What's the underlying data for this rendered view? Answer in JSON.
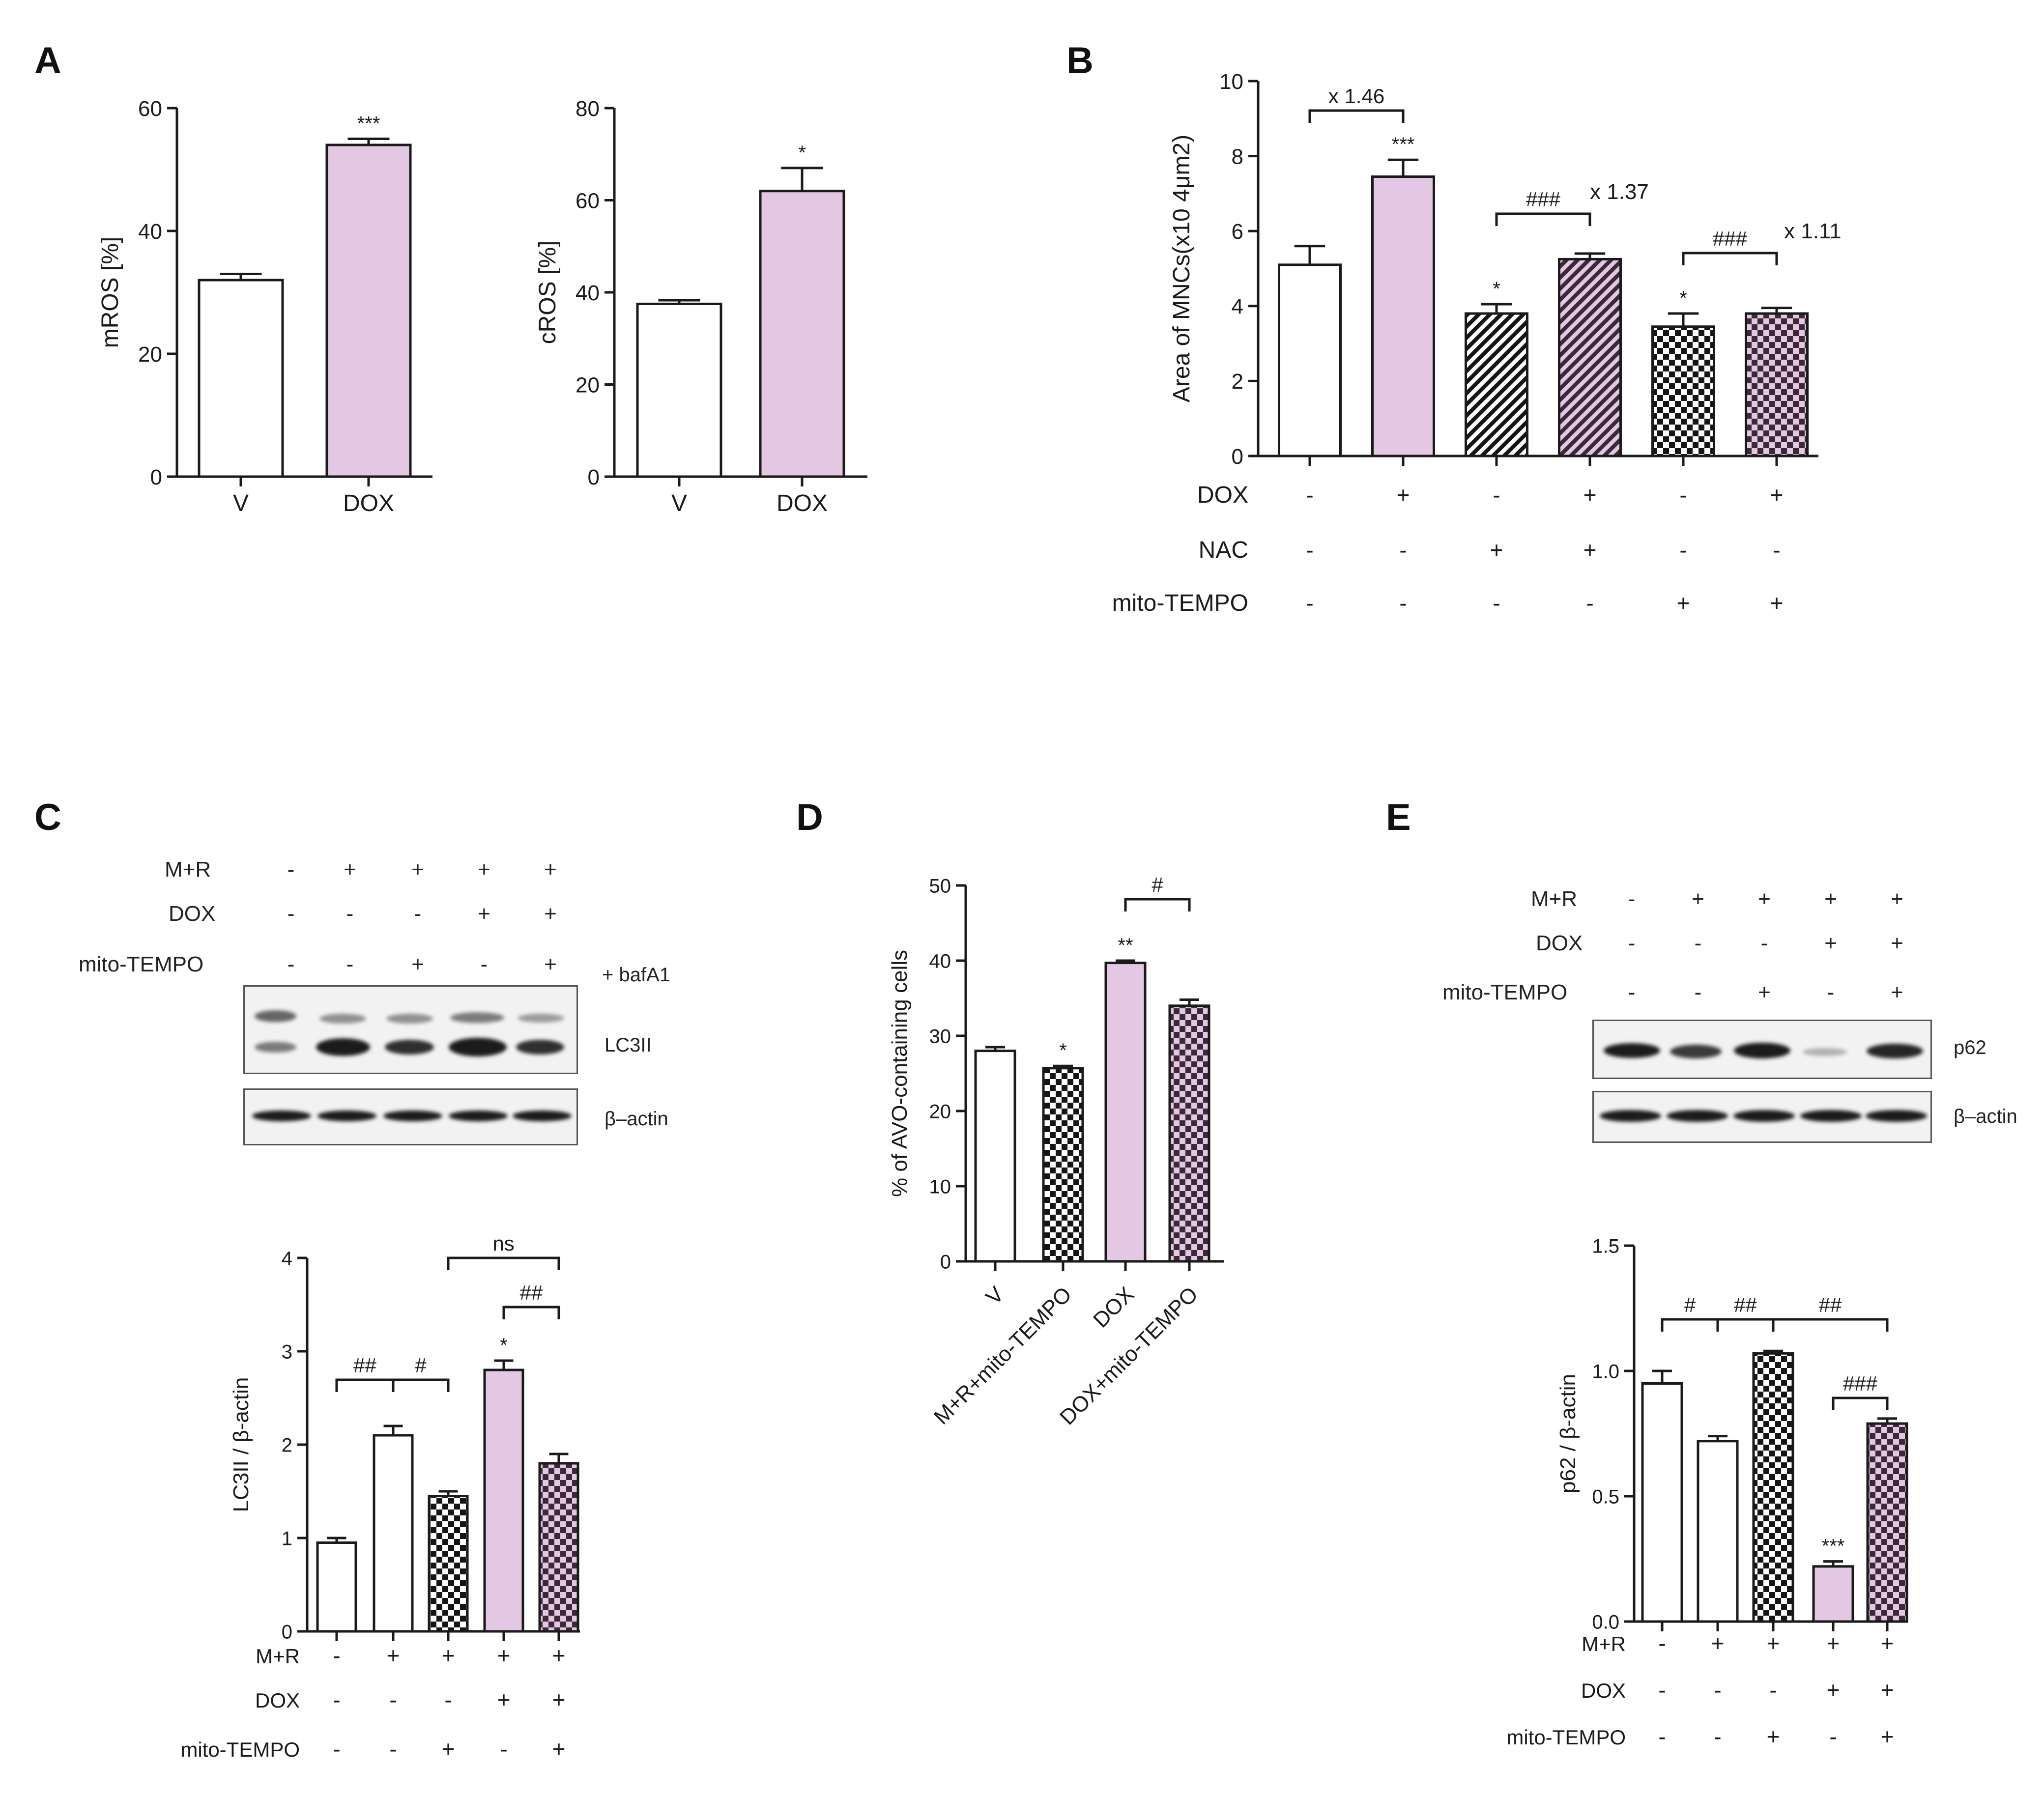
{
  "panels": {
    "A": "A",
    "B": "B",
    "C": "C",
    "D": "D",
    "E": "E"
  },
  "colors": {
    "v": "#ffffff",
    "dox": "#e4c7e2",
    "axis": "#1a1a1a",
    "checker_dark": "#151515",
    "checker_light": "#ffffff",
    "pink_check_dark": "#3a2a38"
  },
  "chart_data": [
    {
      "id": "A1",
      "type": "bar",
      "title": "",
      "categories": [
        "V",
        "DOX"
      ],
      "values": [
        32,
        54
      ],
      "errors": [
        1,
        1
      ],
      "ylabel": "mROS [%]",
      "ylim": [
        0,
        60
      ],
      "yticks": [
        "0",
        "20",
        "40",
        "60"
      ],
      "significance": [
        "",
        "***"
      ],
      "fills": [
        "v",
        "dox"
      ]
    },
    {
      "id": "A2",
      "type": "bar",
      "title": "",
      "categories": [
        "V",
        "DOX"
      ],
      "values": [
        37.5,
        62
      ],
      "errors": [
        0.8,
        5
      ],
      "ylabel": "cROS [%]",
      "ylim": [
        0,
        80
      ],
      "yticks": [
        "0",
        "20",
        "40",
        "60",
        "80"
      ],
      "significance": [
        "",
        "*"
      ],
      "fills": [
        "v",
        "dox"
      ]
    },
    {
      "id": "B",
      "type": "bar",
      "values": [
        5.1,
        7.45,
        3.8,
        5.25,
        3.45,
        3.8
      ],
      "errors": [
        0.5,
        0.45,
        0.25,
        0.15,
        0.35,
        0.15
      ],
      "ylabel": "Area of MNCs(x10 4μm2)",
      "ylim": [
        0,
        10
      ],
      "yticks": [
        "0",
        "2",
        "4",
        "6",
        "8",
        "10"
      ],
      "significance": [
        "",
        "***",
        "*",
        "",
        "*",
        ""
      ],
      "fills": [
        "v",
        "dox",
        "hatch",
        "hatchpink",
        "checker",
        "checkerpink"
      ],
      "brackets": [
        {
          "from": 0,
          "to": 1,
          "label": "x 1.46"
        },
        {
          "from": 2,
          "to": 3,
          "label": "###"
        },
        {
          "from": 4,
          "to": 5,
          "label": "###"
        }
      ],
      "fold_labels": [
        "x 1.37",
        "x 1.11"
      ],
      "treatments": [
        {
          "name": "DOX",
          "signs": [
            "-",
            "+",
            "-",
            "+",
            "-",
            "+"
          ]
        },
        {
          "name": "NAC",
          "signs": [
            "-",
            "-",
            "+",
            "+",
            "-",
            "-"
          ]
        },
        {
          "name": "mito-TEMPO",
          "signs": [
            "-",
            "-",
            "-",
            "-",
            "+",
            "+"
          ]
        }
      ]
    },
    {
      "id": "C",
      "type": "bar",
      "values": [
        0.95,
        2.1,
        1.45,
        2.8,
        1.8
      ],
      "errors": [
        0.05,
        0.1,
        0.05,
        0.1,
        0.1
      ],
      "ylabel": "LC3II / β-actin",
      "ylim": [
        0,
        4
      ],
      "yticks": [
        "0",
        "1",
        "2",
        "3",
        "4"
      ],
      "significance": [
        "",
        "",
        "",
        "*",
        ""
      ],
      "fills": [
        "v",
        "v",
        "checker",
        "dox",
        "checkerpink"
      ],
      "brackets": [
        {
          "from": 0,
          "to": 1,
          "label": "##"
        },
        {
          "from": 1,
          "to": 2,
          "label": "#"
        },
        {
          "from": 3,
          "to": 4,
          "label": "##"
        },
        {
          "from": 2,
          "to": 4,
          "label": "ns"
        }
      ],
      "treatments": [
        {
          "name": "M+R",
          "signs": [
            "-",
            "+",
            "+",
            "+",
            "+"
          ]
        },
        {
          "name": "DOX",
          "signs": [
            "-",
            "-",
            "-",
            "+",
            "+"
          ]
        },
        {
          "name": "mito-TEMPO",
          "signs": [
            "-",
            "-",
            "+",
            "-",
            "+"
          ]
        }
      ]
    },
    {
      "id": "D",
      "type": "bar",
      "categories": [
        "V",
        "M+R+mito-TEMPO",
        "DOX",
        "DOX+mito-TEMPO"
      ],
      "values": [
        28,
        25.7,
        39.7,
        34
      ],
      "errors": [
        0.5,
        0.3,
        0.3,
        0.8
      ],
      "ylabel": "% of AVO-containing cells",
      "ylim": [
        0,
        50
      ],
      "yticks": [
        "0",
        "10",
        "20",
        "30",
        "40",
        "50"
      ],
      "significance": [
        "",
        "*",
        "**",
        ""
      ],
      "fills": [
        "v",
        "checker",
        "dox",
        "checkerpink"
      ],
      "brackets": [
        {
          "from": 2,
          "to": 3,
          "label": "#"
        }
      ]
    },
    {
      "id": "E",
      "type": "bar",
      "values": [
        0.95,
        0.72,
        1.07,
        0.22,
        0.79
      ],
      "errors": [
        0.05,
        0.02,
        0.01,
        0.02,
        0.02
      ],
      "ylabel": "p62 / β-actin",
      "ylim": [
        0,
        1.5
      ],
      "yticks": [
        "0.0",
        "0.5",
        "1.0",
        "1.5"
      ],
      "significance": [
        "",
        "",
        "",
        "***",
        ""
      ],
      "fills": [
        "v",
        "v",
        "checker",
        "dox",
        "checkerpink"
      ],
      "brackets": [
        {
          "from": 0,
          "to": 1,
          "label": "#"
        },
        {
          "from": 1,
          "to": 2,
          "label": "##"
        },
        {
          "from": 2,
          "to": 4,
          "label": "##"
        },
        {
          "from": 3,
          "to": 4,
          "label": "###"
        }
      ],
      "treatments": [
        {
          "name": "M+R",
          "signs": [
            "-",
            "+",
            "+",
            "+",
            "+"
          ]
        },
        {
          "name": "DOX",
          "signs": [
            "-",
            "-",
            "-",
            "+",
            "+"
          ]
        },
        {
          "name": "mito-TEMPO",
          "signs": [
            "-",
            "-",
            "+",
            "-",
            "+"
          ]
        }
      ]
    }
  ],
  "blots": {
    "C": {
      "treatments": [
        {
          "name": "M+R",
          "signs": [
            "-",
            "+",
            "+",
            "+",
            "+"
          ]
        },
        {
          "name": "DOX",
          "signs": [
            "-",
            "-",
            "-",
            "+",
            "+"
          ]
        },
        {
          "name": "mito-TEMPO",
          "signs": [
            "-",
            "-",
            "+",
            "-",
            "+"
          ]
        }
      ],
      "extra_label": "+ bafA1",
      "rows": [
        "LC3II",
        "β–actin"
      ]
    },
    "E": {
      "treatments": [
        {
          "name": "M+R",
          "signs": [
            "-",
            "+",
            "+",
            "+",
            "+"
          ]
        },
        {
          "name": "DOX",
          "signs": [
            "-",
            "-",
            "-",
            "+",
            "+"
          ]
        },
        {
          "name": "mito-TEMPO",
          "signs": [
            "-",
            "-",
            "+",
            "-",
            "+"
          ]
        }
      ],
      "rows": [
        "p62",
        "β–actin"
      ]
    }
  }
}
